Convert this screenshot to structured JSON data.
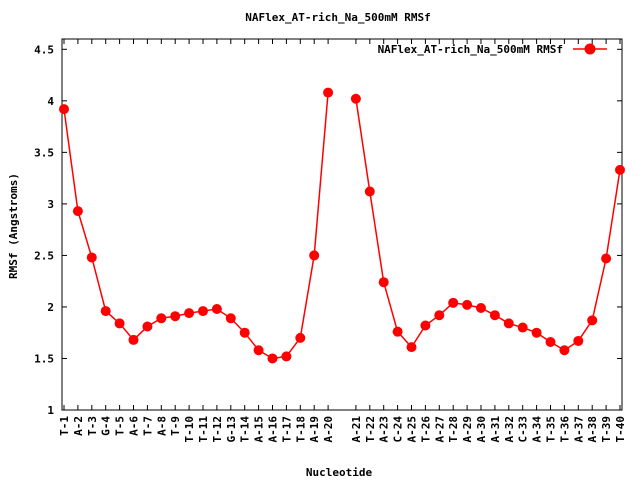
{
  "chart_data": {
    "type": "line",
    "title": "NAFlex_AT-rich_Na_500mM RMSf",
    "xlabel": "Nucleotide",
    "ylabel": "RMSf (Angstroms)",
    "ylim": [
      1,
      4.6
    ],
    "yticks": [
      "1",
      "1.5",
      "2",
      "2.5",
      "3",
      "3.5",
      "4",
      "4.5"
    ],
    "grid": false,
    "legend_position": "top-right",
    "series_color": "#ff0000",
    "marker": "filled-circle",
    "series": [
      {
        "name": "NAFlex_AT-rich_Na_500mM RMSf",
        "segments": [
          {
            "categories": [
              "T-1",
              "A-2",
              "T-3",
              "G-4",
              "T-5",
              "A-6",
              "T-7",
              "A-8",
              "T-9",
              "T-10",
              "T-11",
              "T-12",
              "G-13",
              "T-14",
              "A-15",
              "A-16",
              "T-17",
              "T-18",
              "A-19",
              "A-20"
            ],
            "values": [
              3.92,
              2.93,
              2.48,
              1.96,
              1.84,
              1.68,
              1.81,
              1.89,
              1.91,
              1.94,
              1.96,
              1.98,
              1.89,
              1.75,
              1.58,
              1.5,
              1.52,
              1.7,
              2.5,
              4.08
            ]
          },
          {
            "categories": [
              "A-21",
              "T-22",
              "A-23",
              "C-24",
              "A-25",
              "T-26",
              "A-27",
              "T-28",
              "A-29",
              "A-30",
              "A-31",
              "A-32",
              "C-33",
              "A-34",
              "T-35",
              "T-36",
              "A-37",
              "A-38",
              "T-39",
              "T-40"
            ],
            "values": [
              4.02,
              3.12,
              2.24,
              1.76,
              1.61,
              1.82,
              1.92,
              2.04,
              2.02,
              1.99,
              1.92,
              1.84,
              1.8,
              1.75,
              1.66,
              1.58,
              1.67,
              1.87,
              2.47,
              3.33
            ]
          }
        ]
      }
    ]
  }
}
